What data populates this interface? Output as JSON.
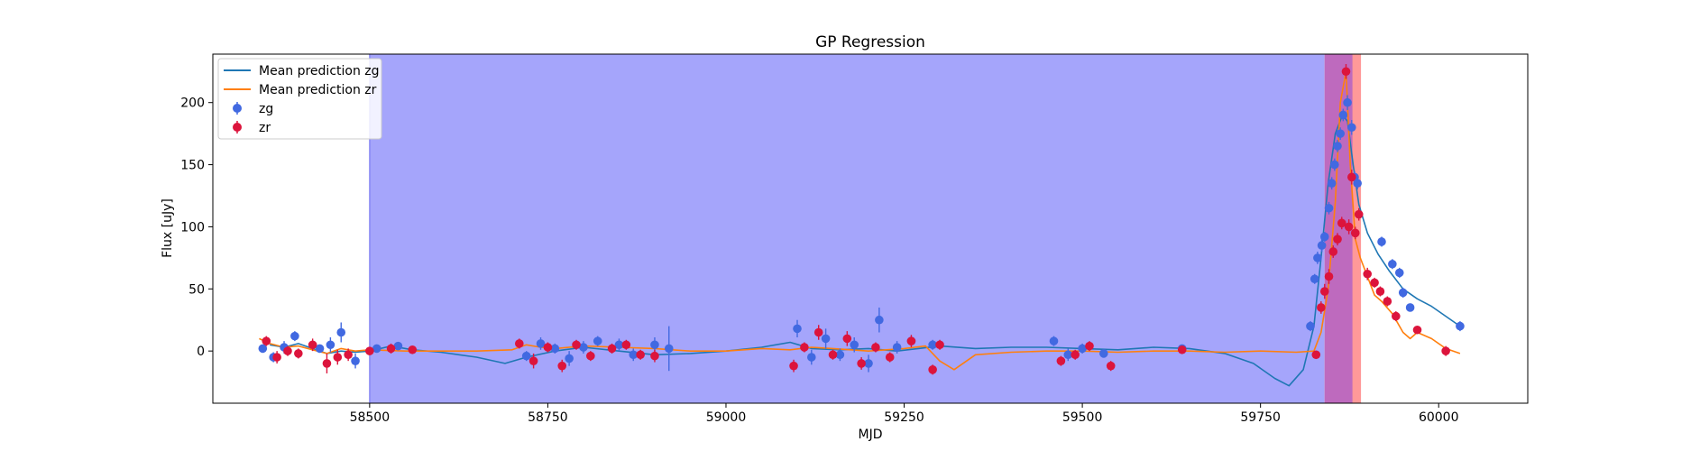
{
  "chart_data": {
    "type": "scatter",
    "title": "GP Regression",
    "xlabel": "MJD",
    "ylabel": "Flux [uJy]",
    "xlim": [
      58280,
      60125
    ],
    "ylim": [
      -42,
      239
    ],
    "xticks": [
      58500,
      58750,
      59000,
      59250,
      59500,
      59750,
      60000
    ],
    "yticks": [
      0,
      50,
      100,
      150,
      200
    ],
    "colors": {
      "zg": "#4169e1",
      "zr": "#dc143c",
      "mean_zg": "#1f77b4",
      "mean_zr": "#ff7f0e",
      "band_blue": "#a5a5fb",
      "band_red": "#ff9999",
      "band_purple": "#be6abe"
    },
    "legend": {
      "position": "upper left",
      "entries": [
        "Mean prediction zg",
        "Mean prediction zr",
        "zg",
        "zr"
      ]
    },
    "shaded_regions": [
      {
        "x0": 58500,
        "x1": 59840,
        "color": "band_blue"
      },
      {
        "x0": 59840,
        "x1": 59891,
        "color": "band_red"
      },
      {
        "x0": 59840,
        "x1": 59879,
        "color": "band_purple"
      }
    ],
    "series": [
      {
        "name": "Mean prediction zg",
        "kind": "line",
        "x": [
          58360,
          58380,
          58400,
          58420,
          58440,
          58460,
          58480,
          58500,
          58530,
          58560,
          58600,
          58650,
          58690,
          58720,
          58760,
          58800,
          58850,
          58900,
          58950,
          59000,
          59050,
          59090,
          59120,
          59160,
          59200,
          59240,
          59270,
          59300,
          59350,
          59400,
          59450,
          59500,
          59550,
          59600,
          59650,
          59700,
          59740,
          59770,
          59790,
          59810,
          59825,
          59835,
          59845,
          59855,
          59865,
          59872,
          59880,
          59888,
          59900,
          59915,
          59930,
          59950,
          59970,
          59990,
          60010,
          60030
        ],
        "y": [
          5,
          3,
          6,
          2,
          -2,
          0,
          -1,
          0,
          4,
          1,
          -1,
          -5,
          -10,
          -5,
          0,
          3,
          0,
          -3,
          -2,
          0,
          3,
          7,
          2,
          1,
          2,
          0,
          2,
          4,
          2,
          3,
          3,
          2,
          1,
          3,
          2,
          -2,
          -10,
          -22,
          -28,
          -15,
          20,
          75,
          135,
          175,
          190,
          185,
          150,
          118,
          95,
          78,
          65,
          50,
          42,
          36,
          28,
          20
        ]
      },
      {
        "name": "Mean prediction zr",
        "kind": "line",
        "x": [
          58345,
          58360,
          58380,
          58400,
          58420,
          58440,
          58460,
          58480,
          58500,
          58550,
          58600,
          58650,
          58700,
          58720,
          58740,
          58760,
          58800,
          58850,
          58900,
          58950,
          59000,
          59050,
          59090,
          59120,
          59150,
          59200,
          59250,
          59280,
          59300,
          59320,
          59350,
          59400,
          59450,
          59500,
          59550,
          59600,
          59650,
          59700,
          59750,
          59800,
          59825,
          59835,
          59845,
          59855,
          59862,
          59870,
          59876,
          59883,
          59890,
          59900,
          59910,
          59920,
          59935,
          59950,
          59960,
          59970,
          59990,
          60010,
          60030
        ],
        "y": [
          10,
          6,
          3,
          4,
          1,
          -2,
          2,
          0,
          1,
          0,
          0,
          0,
          1,
          5,
          3,
          2,
          4,
          3,
          2,
          0,
          0,
          2,
          1,
          3,
          2,
          0,
          2,
          4,
          -8,
          -15,
          -3,
          -1,
          0,
          0,
          -1,
          0,
          0,
          -1,
          0,
          -1,
          0,
          15,
          50,
          120,
          200,
          225,
          150,
          90,
          75,
          60,
          45,
          40,
          30,
          15,
          10,
          15,
          10,
          2,
          -2
        ]
      },
      {
        "name": "zg",
        "kind": "errorbar",
        "x": [
          58350,
          58365,
          58380,
          58395,
          58430,
          58445,
          58460,
          58480,
          58510,
          58540,
          58720,
          58740,
          58760,
          58780,
          58800,
          58820,
          58850,
          58870,
          58900,
          58920,
          59100,
          59120,
          59140,
          59160,
          59180,
          59200,
          59215,
          59240,
          59260,
          59290,
          59460,
          59480,
          59500,
          59530,
          59640,
          59820,
          59826,
          59830,
          59836,
          59840,
          59846,
          59850,
          59854,
          59858,
          59862,
          59866,
          59872,
          59878,
          59882,
          59886,
          59920,
          59935,
          59945,
          59950,
          59960,
          60030
        ],
        "y": [
          2,
          -5,
          3,
          12,
          2,
          5,
          15,
          -8,
          2,
          4,
          -4,
          6,
          2,
          -6,
          3,
          8,
          5,
          -3,
          5,
          2,
          18,
          -5,
          10,
          -3,
          5,
          -10,
          25,
          3,
          8,
          5,
          8,
          -3,
          2,
          -2,
          2,
          20,
          58,
          75,
          85,
          92,
          115,
          135,
          150,
          165,
          175,
          190,
          200,
          180,
          140,
          135,
          88,
          70,
          63,
          47,
          35,
          20
        ],
        "err": [
          3,
          4,
          5,
          4,
          3,
          6,
          8,
          6,
          3,
          3,
          4,
          5,
          4,
          6,
          5,
          4,
          5,
          5,
          6,
          18,
          7,
          6,
          8,
          5,
          6,
          7,
          10,
          5,
          4,
          4,
          4,
          5,
          4,
          3,
          2,
          4,
          4,
          5,
          5,
          4,
          5,
          5,
          5,
          5,
          5,
          5,
          6,
          6,
          5,
          5,
          4,
          4,
          4,
          4,
          3,
          4
        ]
      },
      {
        "name": "zr",
        "kind": "errorbar",
        "x": [
          58355,
          58370,
          58385,
          58400,
          58420,
          58440,
          58455,
          58470,
          58500,
          58530,
          58560,
          58710,
          58730,
          58750,
          58770,
          58790,
          58810,
          58840,
          58860,
          58880,
          58900,
          59095,
          59110,
          59130,
          59150,
          59170,
          59190,
          59210,
          59230,
          59260,
          59290,
          59300,
          59470,
          59490,
          59510,
          59540,
          59640,
          59828,
          59835,
          59840,
          59846,
          59852,
          59858,
          59864,
          59870,
          59874,
          59878,
          59883,
          59888,
          59900,
          59910,
          59918,
          59928,
          59940,
          59970,
          60010
        ],
        "y": [
          8,
          -5,
          0,
          -2,
          5,
          -10,
          -5,
          -3,
          0,
          2,
          1,
          6,
          -8,
          3,
          -12,
          5,
          -4,
          2,
          5,
          -3,
          -4,
          -12,
          3,
          15,
          -3,
          10,
          -10,
          3,
          -5,
          8,
          -15,
          5,
          -8,
          -3,
          4,
          -12,
          1,
          -3,
          35,
          48,
          60,
          80,
          90,
          103,
          225,
          100,
          140,
          95,
          110,
          62,
          55,
          48,
          40,
          28,
          17,
          0
        ],
        "err": [
          4,
          5,
          4,
          4,
          5,
          8,
          6,
          5,
          3,
          4,
          3,
          4,
          6,
          4,
          5,
          4,
          4,
          4,
          4,
          4,
          5,
          5,
          4,
          6,
          4,
          6,
          5,
          4,
          4,
          5,
          4,
          4,
          4,
          4,
          4,
          4,
          3,
          3,
          5,
          6,
          6,
          5,
          5,
          5,
          6,
          6,
          6,
          5,
          5,
          5,
          4,
          4,
          4,
          4,
          3,
          4
        ]
      }
    ]
  }
}
